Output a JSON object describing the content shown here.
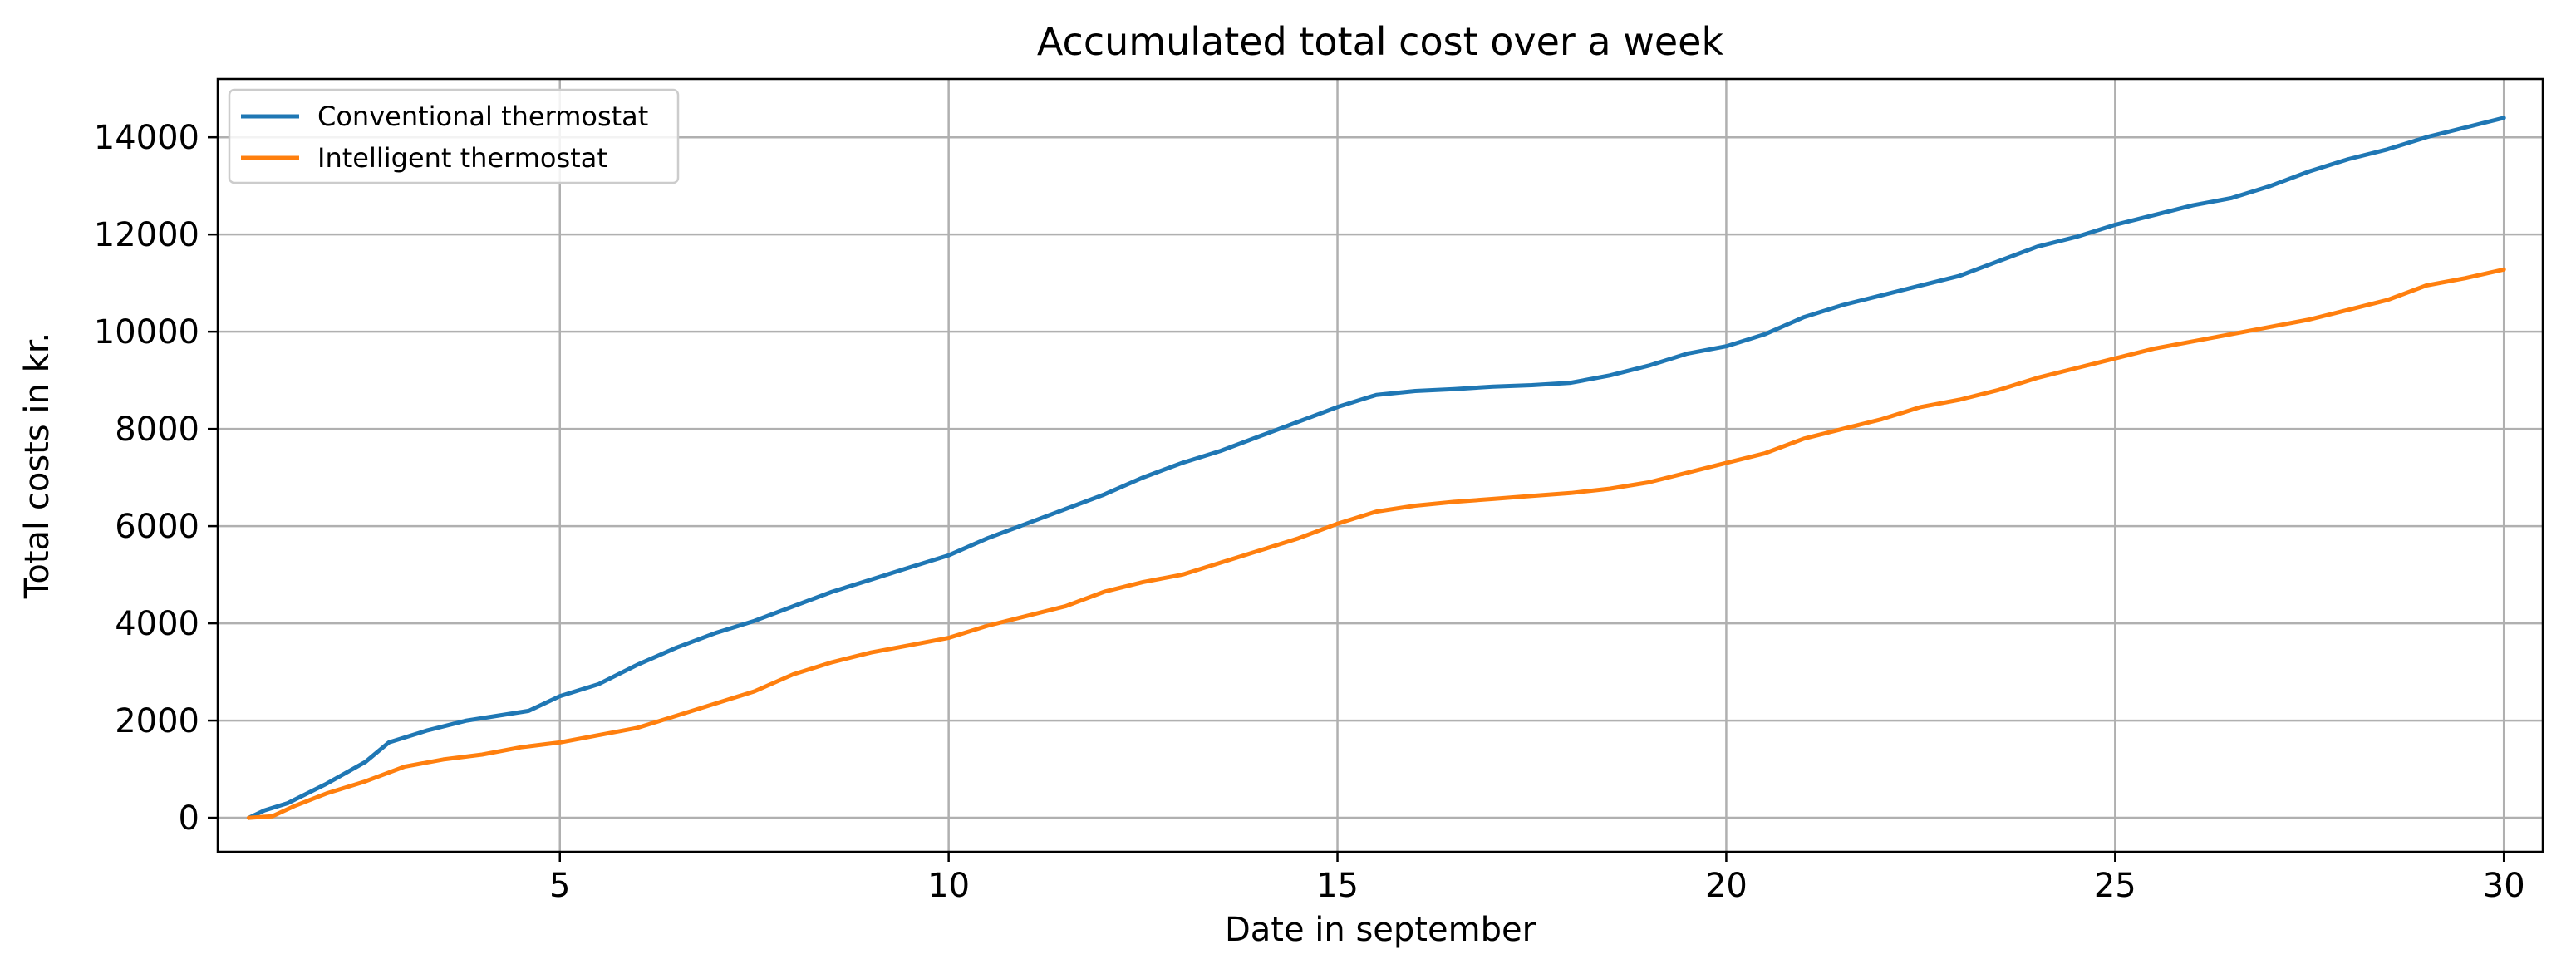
{
  "chart_data": {
    "type": "line",
    "title": "Accumulated total cost over a week",
    "xlabel": "Date in september",
    "ylabel": "Total costs in kr.",
    "xlim": [
      0.6,
      30.5
    ],
    "ylim": [
      -700,
      15200
    ],
    "xticks": [
      5,
      10,
      15,
      20,
      25,
      30
    ],
    "yticks": [
      0,
      2000,
      4000,
      6000,
      8000,
      10000,
      12000,
      14000
    ],
    "grid": true,
    "legend_position": "upper-left",
    "series": [
      {
        "name": "Conventional thermostat",
        "color": "#1f77b4",
        "points": [
          [
            1.0,
            0
          ],
          [
            1.2,
            150
          ],
          [
            1.5,
            300
          ],
          [
            2.0,
            700
          ],
          [
            2.5,
            1150
          ],
          [
            2.8,
            1550
          ],
          [
            3.3,
            1800
          ],
          [
            3.8,
            2000
          ],
          [
            4.6,
            2200
          ],
          [
            5.0,
            2500
          ],
          [
            5.5,
            2750
          ],
          [
            6.0,
            3150
          ],
          [
            6.5,
            3500
          ],
          [
            7.0,
            3800
          ],
          [
            7.5,
            4050
          ],
          [
            8.0,
            4350
          ],
          [
            8.5,
            4650
          ],
          [
            9.0,
            4900
          ],
          [
            9.5,
            5150
          ],
          [
            10.0,
            5400
          ],
          [
            10.5,
            5750
          ],
          [
            11.0,
            6050
          ],
          [
            11.5,
            6350
          ],
          [
            12.0,
            6650
          ],
          [
            12.5,
            7000
          ],
          [
            13.0,
            7300
          ],
          [
            13.5,
            7550
          ],
          [
            14.0,
            7850
          ],
          [
            14.5,
            8150
          ],
          [
            15.0,
            8450
          ],
          [
            15.5,
            8700
          ],
          [
            16.0,
            8780
          ],
          [
            16.5,
            8820
          ],
          [
            17.0,
            8870
          ],
          [
            17.5,
            8900
          ],
          [
            18.0,
            8950
          ],
          [
            18.5,
            9100
          ],
          [
            19.0,
            9300
          ],
          [
            19.5,
            9550
          ],
          [
            20.0,
            9700
          ],
          [
            20.5,
            9950
          ],
          [
            21.0,
            10300
          ],
          [
            21.5,
            10550
          ],
          [
            22.0,
            10750
          ],
          [
            22.5,
            10950
          ],
          [
            23.0,
            11150
          ],
          [
            23.5,
            11450
          ],
          [
            24.0,
            11750
          ],
          [
            24.5,
            11950
          ],
          [
            25.0,
            12200
          ],
          [
            25.5,
            12400
          ],
          [
            26.0,
            12600
          ],
          [
            26.5,
            12750
          ],
          [
            27.0,
            13000
          ],
          [
            27.5,
            13300
          ],
          [
            28.0,
            13550
          ],
          [
            28.5,
            13750
          ],
          [
            29.0,
            14000
          ],
          [
            29.5,
            14200
          ],
          [
            30.0,
            14400
          ]
        ]
      },
      {
        "name": "Intelligent thermostat",
        "color": "#ff7f0e",
        "points": [
          [
            1.0,
            0
          ],
          [
            1.3,
            30
          ],
          [
            1.6,
            250
          ],
          [
            2.0,
            500
          ],
          [
            2.5,
            750
          ],
          [
            3.0,
            1050
          ],
          [
            3.5,
            1200
          ],
          [
            4.0,
            1300
          ],
          [
            4.5,
            1450
          ],
          [
            5.0,
            1550
          ],
          [
            5.5,
            1700
          ],
          [
            6.0,
            1850
          ],
          [
            6.5,
            2100
          ],
          [
            7.0,
            2350
          ],
          [
            7.5,
            2600
          ],
          [
            8.0,
            2950
          ],
          [
            8.5,
            3200
          ],
          [
            9.0,
            3400
          ],
          [
            9.5,
            3550
          ],
          [
            10.0,
            3700
          ],
          [
            10.5,
            3950
          ],
          [
            11.0,
            4150
          ],
          [
            11.5,
            4350
          ],
          [
            12.0,
            4650
          ],
          [
            12.5,
            4850
          ],
          [
            13.0,
            5000
          ],
          [
            13.5,
            5250
          ],
          [
            14.0,
            5500
          ],
          [
            14.5,
            5750
          ],
          [
            15.0,
            6050
          ],
          [
            15.5,
            6300
          ],
          [
            16.0,
            6420
          ],
          [
            16.5,
            6500
          ],
          [
            17.0,
            6560
          ],
          [
            17.5,
            6620
          ],
          [
            18.0,
            6680
          ],
          [
            18.5,
            6770
          ],
          [
            19.0,
            6900
          ],
          [
            19.5,
            7100
          ],
          [
            20.0,
            7300
          ],
          [
            20.5,
            7500
          ],
          [
            21.0,
            7800
          ],
          [
            21.5,
            8000
          ],
          [
            22.0,
            8200
          ],
          [
            22.5,
            8450
          ],
          [
            23.0,
            8600
          ],
          [
            23.5,
            8800
          ],
          [
            24.0,
            9050
          ],
          [
            24.5,
            9250
          ],
          [
            25.0,
            9450
          ],
          [
            25.5,
            9650
          ],
          [
            26.0,
            9800
          ],
          [
            26.5,
            9950
          ],
          [
            27.0,
            10100
          ],
          [
            27.5,
            10250
          ],
          [
            28.0,
            10450
          ],
          [
            28.5,
            10650
          ],
          [
            29.0,
            10950
          ],
          [
            29.5,
            11100
          ],
          [
            30.0,
            11280
          ]
        ]
      }
    ]
  }
}
